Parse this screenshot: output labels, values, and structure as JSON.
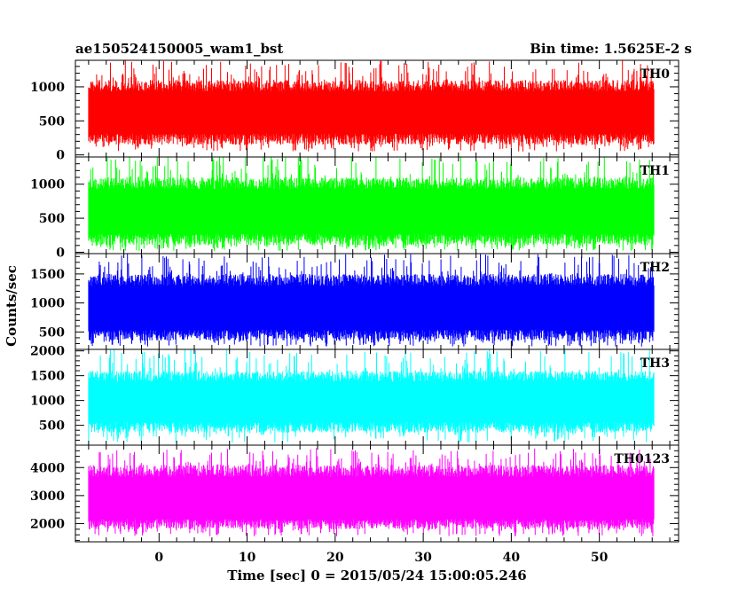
{
  "header": {
    "left_title": "ae150524150005_wam1_bst",
    "right_title": "Bin time: 1.5625E-2 s"
  },
  "axes": {
    "xlabel": "Time [sec] 0 = 2015/05/24 15:00:05.246",
    "ylabel": "Counts/sec"
  },
  "chart_data": {
    "type": "line",
    "shared_x": {
      "label": "Time [sec] 0 = 2015/05/24 15:00:05.246",
      "range": [
        -9.5,
        59
      ],
      "ticks": [
        0,
        10,
        20,
        30,
        40,
        50
      ],
      "data_span": [
        -8,
        56.2
      ]
    },
    "panels": [
      {
        "name": "TH0",
        "color": "#ff0000",
        "ylim": [
          -30,
          1390
        ],
        "yticks": [
          0,
          500,
          1000
        ],
        "typical_range": [
          150,
          1100
        ],
        "extreme_range": [
          50,
          1390
        ],
        "mean": 620
      },
      {
        "name": "TH1",
        "color": "#00ff00",
        "ylim": [
          -20,
          1400
        ],
        "yticks": [
          0,
          500,
          1000
        ],
        "typical_range": [
          100,
          1100
        ],
        "extreme_range": [
          20,
          1420
        ],
        "mean": 600
      },
      {
        "name": "TH2",
        "color": "#0000ff",
        "ylim": [
          200,
          1850
        ],
        "yticks": [
          500,
          1000,
          1500
        ],
        "typical_range": [
          350,
          1500
        ],
        "extreme_range": [
          250,
          1850
        ],
        "mean": 900
      },
      {
        "name": "TH3",
        "color": "#00ffff",
        "ylim": [
          100,
          2030
        ],
        "yticks": [
          500,
          1000,
          1500,
          2000
        ],
        "typical_range": [
          350,
          1600
        ],
        "extreme_range": [
          150,
          2030
        ],
        "mean": 970
      },
      {
        "name": "TH0123",
        "color": "#ff00ff",
        "ylim": [
          1350,
          4800
        ],
        "yticks": [
          2000,
          3000,
          4000
        ],
        "typical_range": [
          1800,
          4100
        ],
        "extreme_range": [
          1550,
          4700
        ],
        "mean": 2850
      }
    ]
  }
}
